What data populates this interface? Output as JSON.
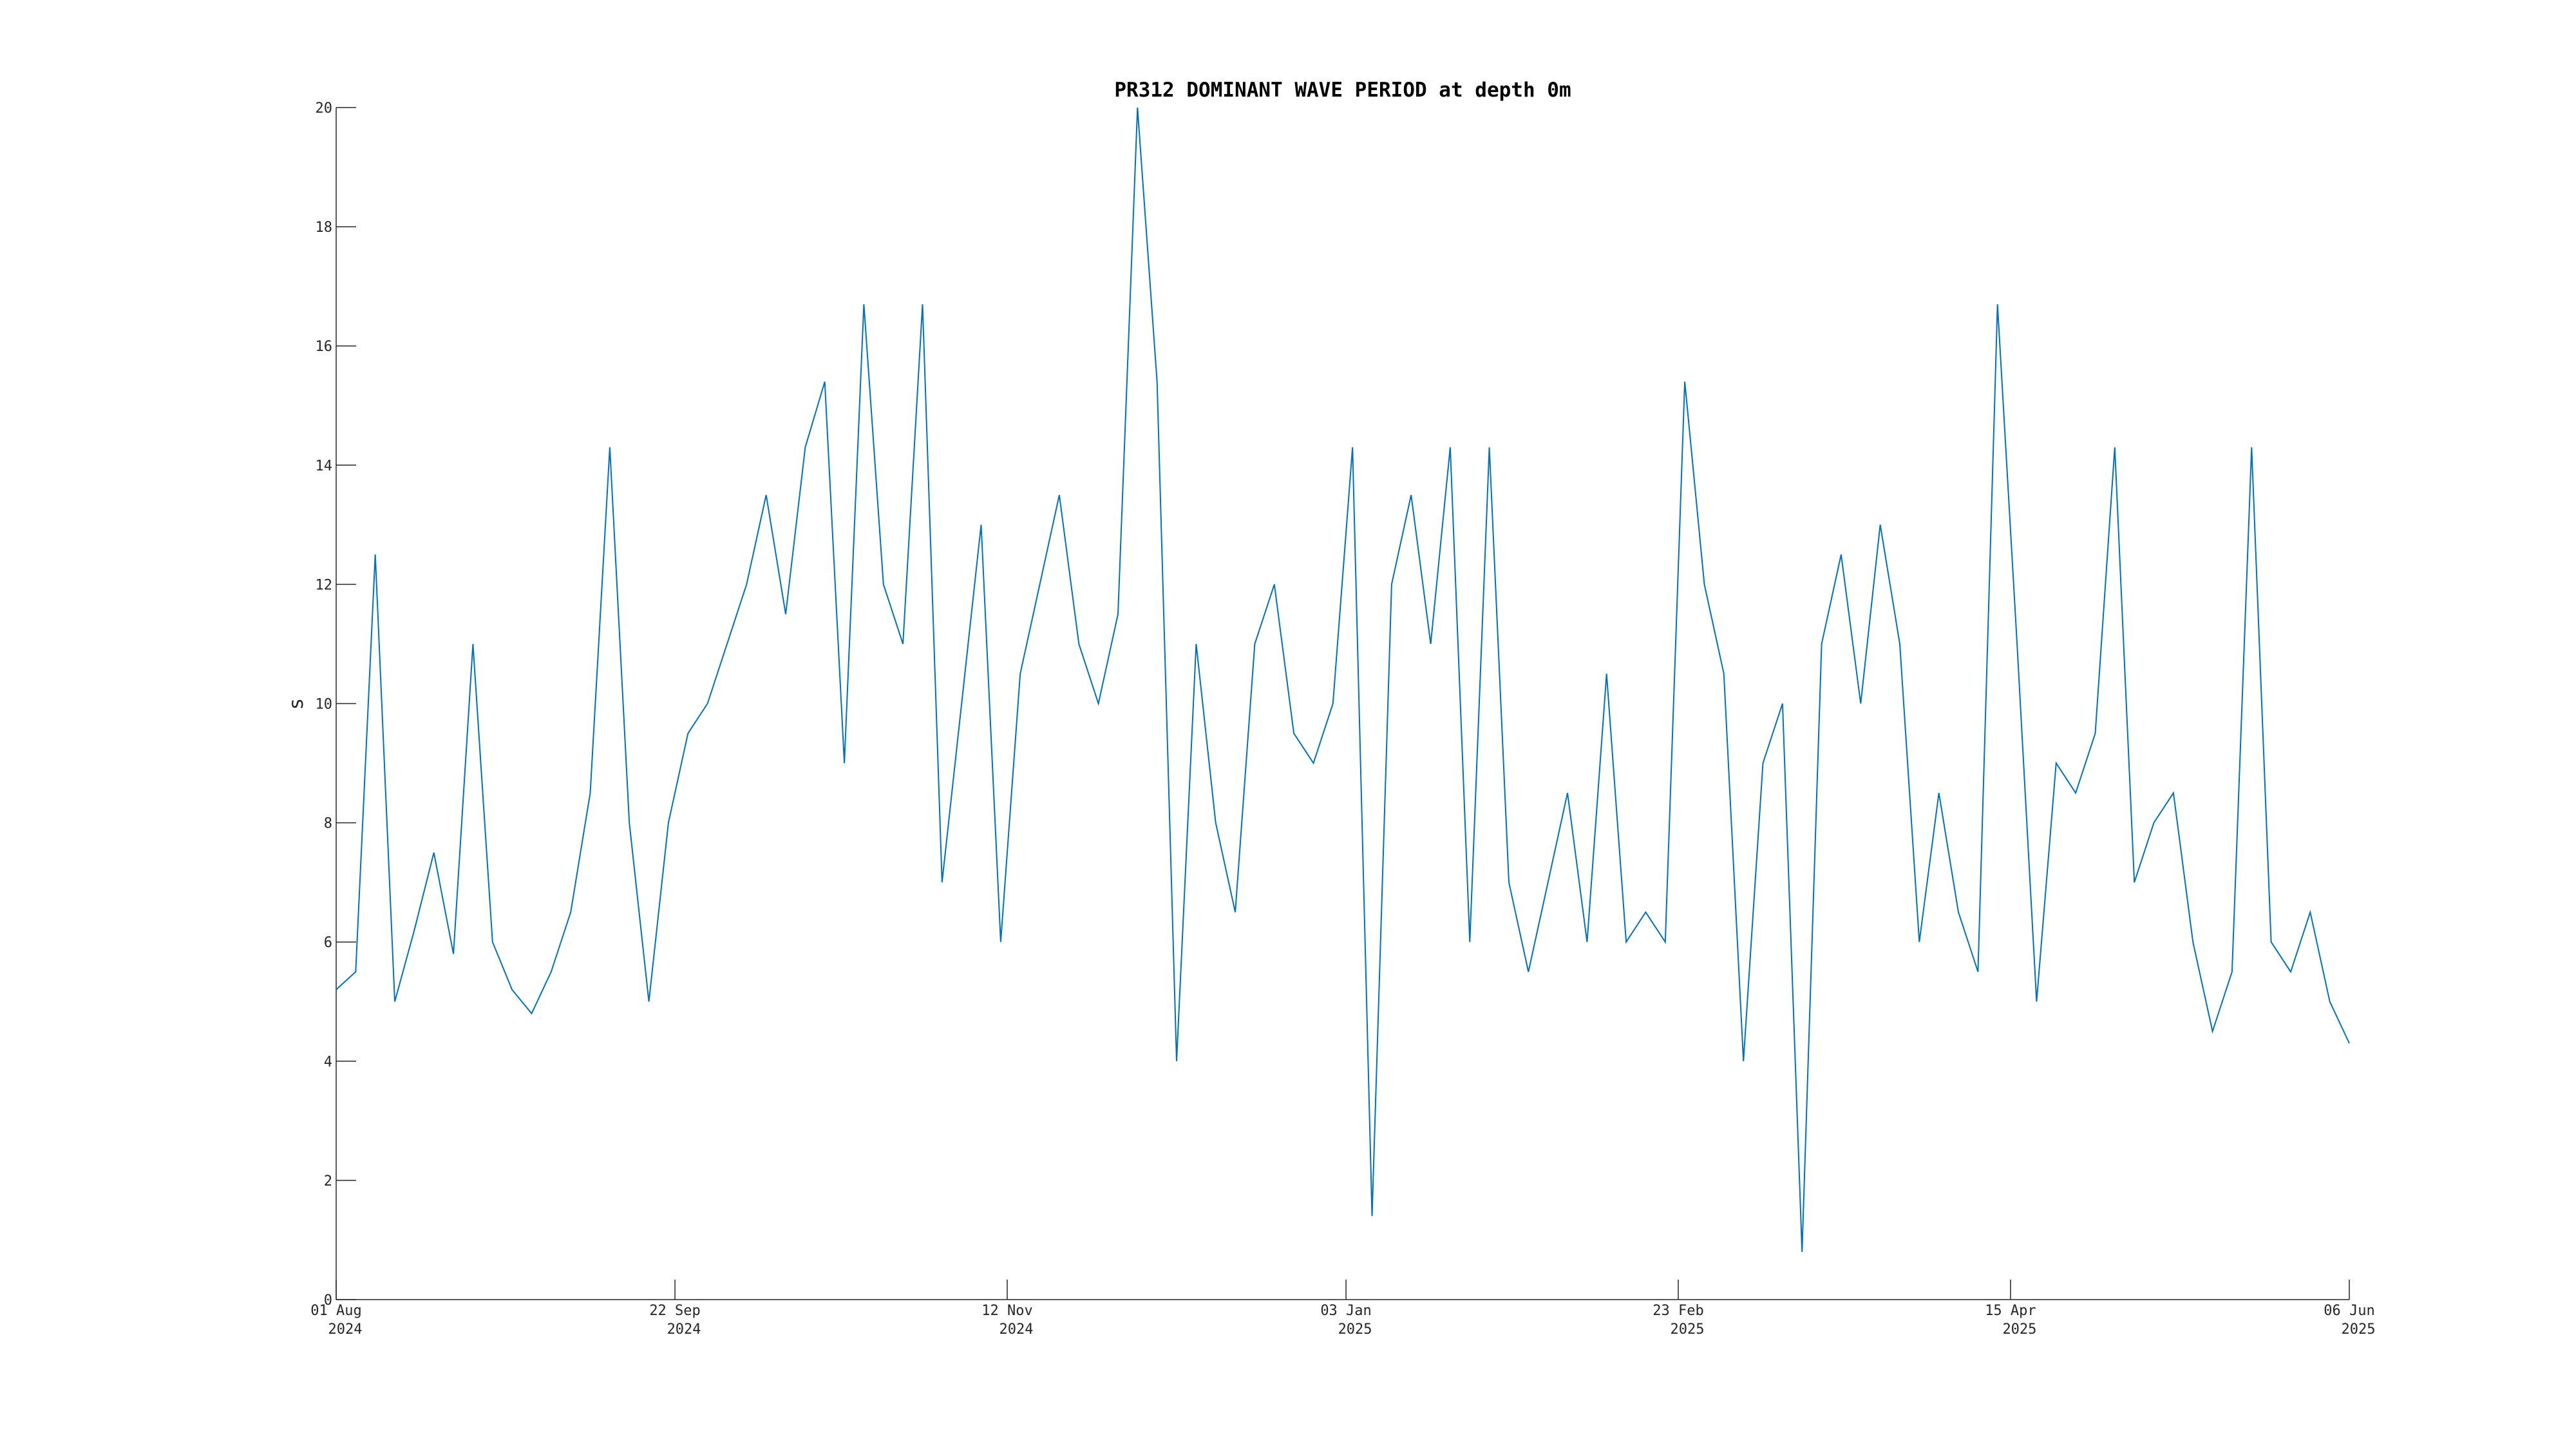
{
  "chart_data": {
    "type": "line",
    "title": "PR312 DOMINANT WAVE PERIOD at depth 0m",
    "ylabel": "s",
    "x": [
      "2024-08-01",
      "2024-08-04",
      "2024-08-07",
      "2024-08-10",
      "2024-08-13",
      "2024-08-16",
      "2024-08-19",
      "2024-08-22",
      "2024-08-25",
      "2024-08-28",
      "2024-08-31",
      "2024-09-03",
      "2024-09-06",
      "2024-09-09",
      "2024-09-12",
      "2024-09-15",
      "2024-09-18",
      "2024-09-21",
      "2024-09-24",
      "2024-09-27",
      "2024-09-30",
      "2024-10-03",
      "2024-10-06",
      "2024-10-09",
      "2024-10-12",
      "2024-10-15",
      "2024-10-18",
      "2024-10-21",
      "2024-10-24",
      "2024-10-27",
      "2024-10-30",
      "2024-11-02",
      "2024-11-05",
      "2024-11-08",
      "2024-11-11",
      "2024-11-14",
      "2024-11-17",
      "2024-11-20",
      "2024-11-23",
      "2024-11-26",
      "2024-11-29",
      "2024-12-02",
      "2024-12-05",
      "2024-12-08",
      "2024-12-11",
      "2024-12-14",
      "2024-12-17",
      "2024-12-20",
      "2024-12-23",
      "2024-12-26",
      "2024-12-29",
      "2025-01-01",
      "2025-01-04",
      "2025-01-07",
      "2025-01-10",
      "2025-01-13",
      "2025-01-16",
      "2025-01-19",
      "2025-01-22",
      "2025-01-25",
      "2025-01-28",
      "2025-01-31",
      "2025-02-03",
      "2025-02-06",
      "2025-02-09",
      "2025-02-12",
      "2025-02-15",
      "2025-02-18",
      "2025-02-21",
      "2025-02-24",
      "2025-02-27",
      "2025-03-02",
      "2025-03-05",
      "2025-03-08",
      "2025-03-11",
      "2025-03-14",
      "2025-03-17",
      "2025-03-20",
      "2025-03-23",
      "2025-03-26",
      "2025-03-29",
      "2025-04-01",
      "2025-04-04",
      "2025-04-07",
      "2025-04-10",
      "2025-04-13",
      "2025-04-16",
      "2025-04-19",
      "2025-04-22",
      "2025-04-25",
      "2025-04-28",
      "2025-05-01",
      "2025-05-04",
      "2025-05-07",
      "2025-05-10",
      "2025-05-13",
      "2025-05-16",
      "2025-05-19",
      "2025-05-22",
      "2025-05-25",
      "2025-05-28",
      "2025-05-31",
      "2025-06-03",
      "2025-06-06"
    ],
    "series": [
      {
        "name": "dominant wave period",
        "color": "#0072bd",
        "values": [
          5.2,
          5.5,
          12.5,
          5.0,
          6.2,
          7.5,
          5.8,
          11.0,
          6.0,
          5.2,
          4.8,
          5.5,
          6.5,
          8.5,
          14.3,
          8.0,
          5.0,
          8.0,
          9.5,
          10.0,
          11.0,
          12.0,
          13.5,
          11.5,
          14.3,
          15.4,
          9.0,
          16.7,
          12.0,
          11.0,
          16.7,
          7.0,
          10.0,
          13.0,
          6.0,
          10.5,
          12.0,
          13.5,
          11.0,
          10.0,
          11.5,
          20.0,
          15.4,
          4.0,
          11.0,
          8.0,
          6.5,
          11.0,
          12.0,
          9.5,
          9.0,
          10.0,
          14.3,
          1.4,
          12.0,
          13.5,
          11.0,
          14.3,
          6.0,
          14.3,
          7.0,
          5.5,
          7.0,
          8.5,
          6.0,
          10.5,
          6.0,
          6.5,
          6.0,
          15.4,
          12.0,
          10.5,
          4.0,
          9.0,
          10.0,
          0.8,
          11.0,
          12.5,
          10.0,
          13.0,
          11.0,
          6.0,
          8.5,
          6.5,
          5.5,
          16.7,
          11.0,
          5.0,
          9.0,
          8.5,
          9.5,
          14.3,
          7.0,
          8.0,
          8.5,
          6.0,
          4.5,
          5.5,
          14.3,
          6.0,
          5.5,
          6.5,
          5.0,
          4.3
        ]
      }
    ],
    "xlim": [
      "2024-08-01",
      "2025-06-06"
    ],
    "xticks": [
      {
        "value": "2024-08-01",
        "label": [
          "01 Aug",
          "2024"
        ]
      },
      {
        "value": "2024-09-22",
        "label": [
          "22 Sep",
          "2024"
        ]
      },
      {
        "value": "2024-11-12",
        "label": [
          "12 Nov",
          "2024"
        ]
      },
      {
        "value": "2025-01-03",
        "label": [
          "03 Jan",
          "2025"
        ]
      },
      {
        "value": "2025-02-23",
        "label": [
          "23 Feb",
          "2025"
        ]
      },
      {
        "value": "2025-04-15",
        "label": [
          "15 Apr",
          "2025"
        ]
      },
      {
        "value": "2025-06-06",
        "label": [
          "06 Jun",
          "2025"
        ]
      }
    ],
    "ylim": [
      0,
      20
    ],
    "yticks": [
      0,
      2,
      4,
      6,
      8,
      10,
      12,
      14,
      16,
      18,
      20
    ],
    "grid": false
  }
}
